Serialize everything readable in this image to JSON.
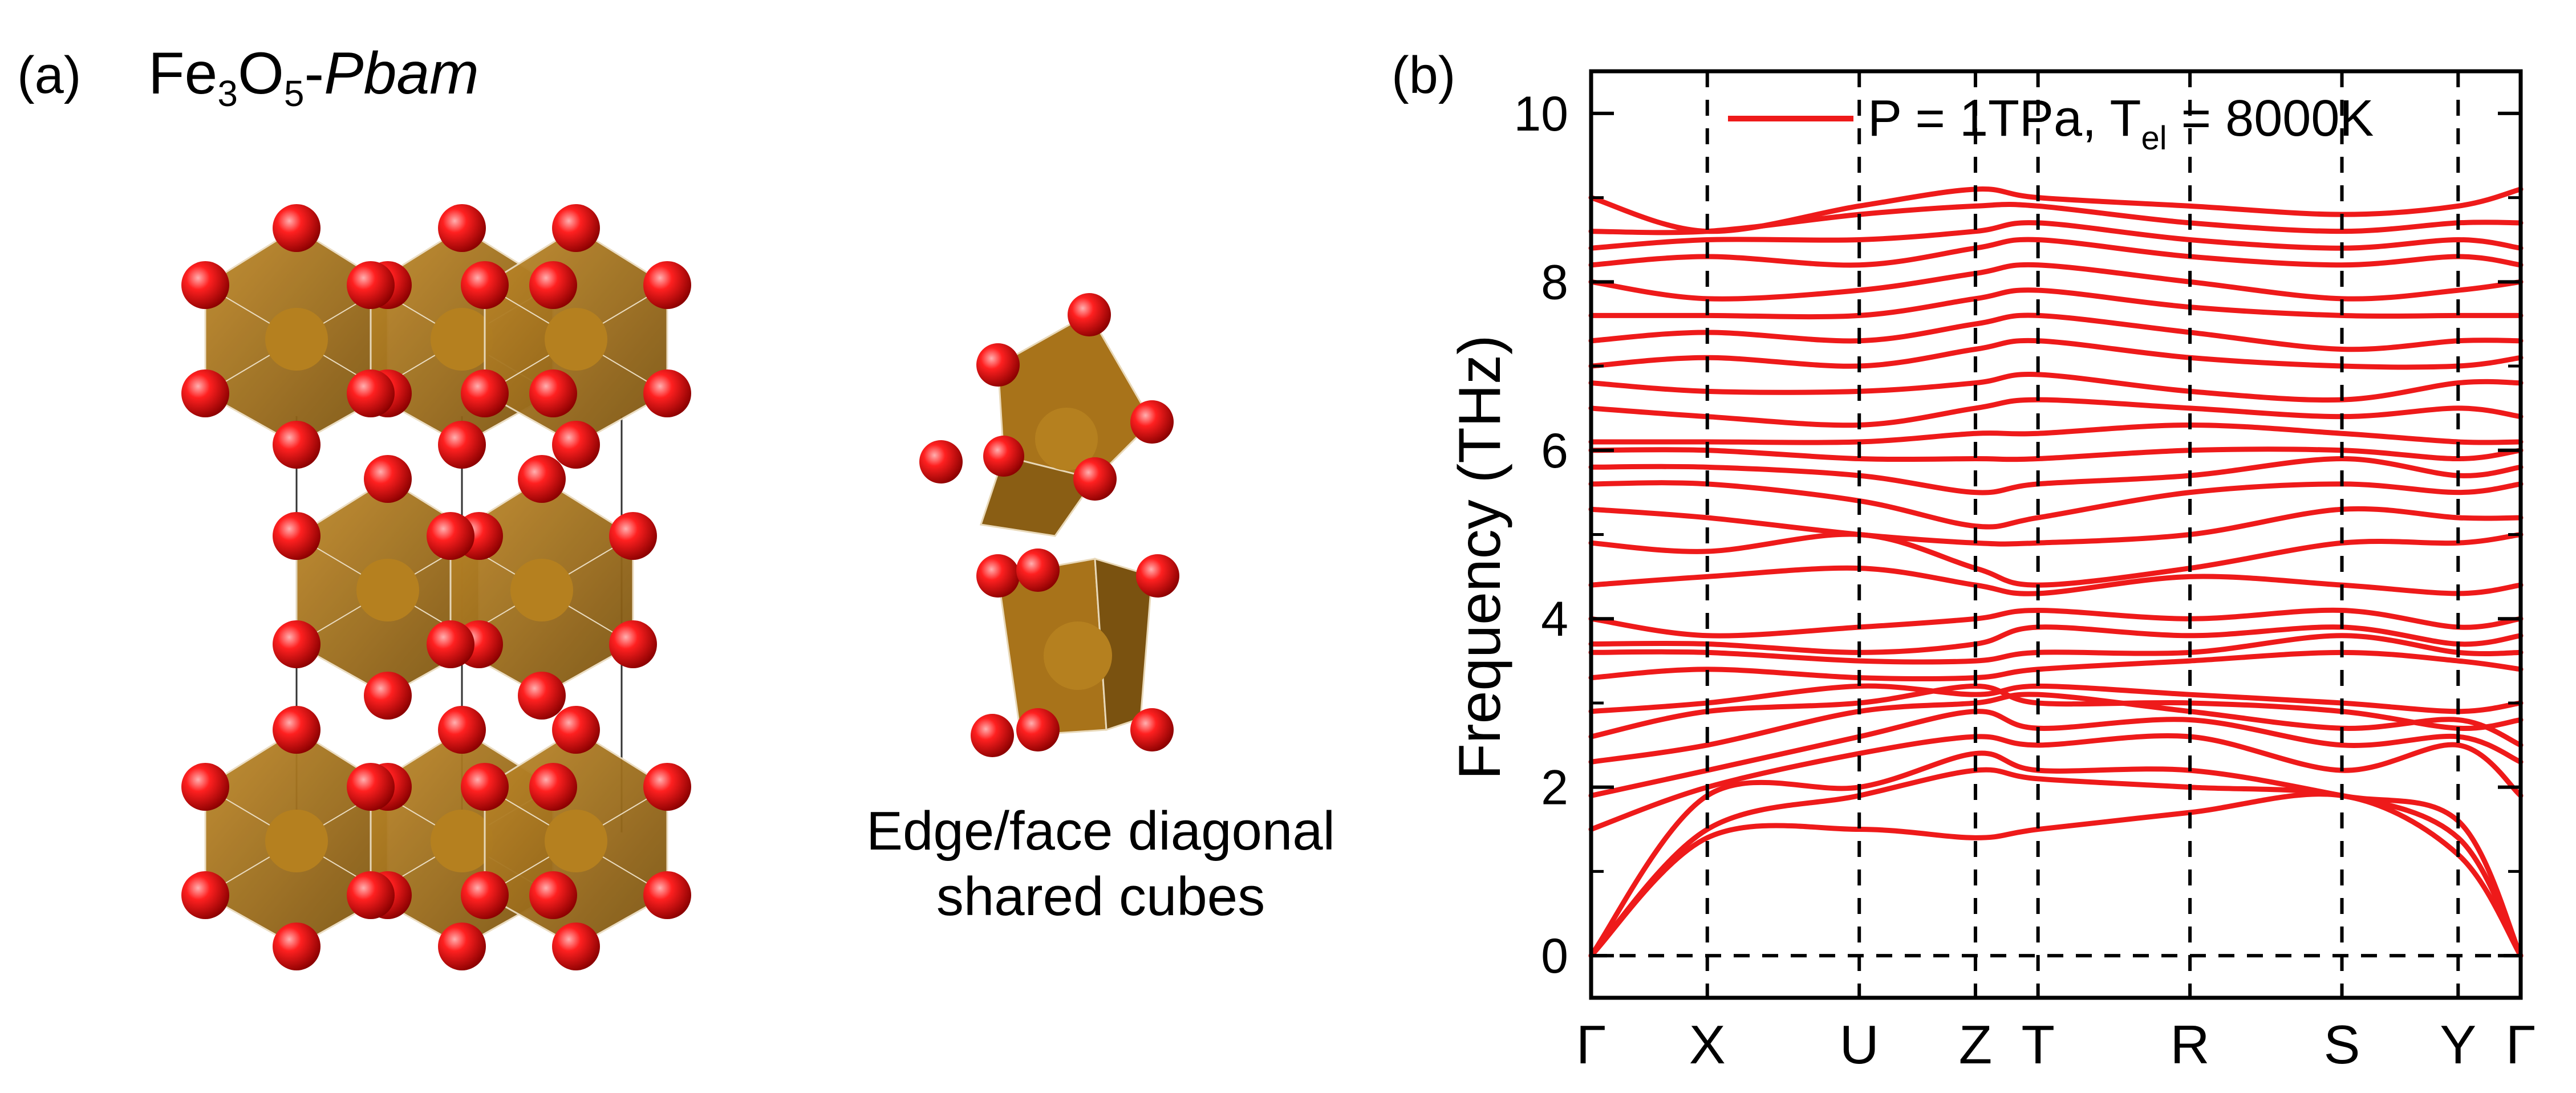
{
  "panel_a": {
    "label": "(a)",
    "title_parts": {
      "fe": "Fe",
      "fe_sub": "3",
      "o": "O",
      "o_sub": "5",
      "dash": "-",
      "space_group": "Pbam"
    },
    "caption_line1": "Edge/face diagonal",
    "caption_line2": "shared cubes",
    "colors": {
      "polyhedra": "#a8731a",
      "oxygen": "#e0101a"
    }
  },
  "panel_b": {
    "label": "(b)"
  },
  "chart_data": {
    "type": "line",
    "ylabel": "Frequency (THz)",
    "ylim": [
      -0.5,
      10.5
    ],
    "yticks": [
      0,
      2,
      4,
      6,
      8,
      10
    ],
    "ytick_labels": [
      "0",
      "2",
      "4",
      "6",
      "8",
      "10"
    ],
    "grid": false,
    "legend": {
      "placement": "top-right",
      "text": "P = 1TPa, T",
      "sub": "el",
      "text_end": " = 8000K"
    },
    "line_color": "#ee1a1a",
    "kpoints": [
      {
        "label": "Γ",
        "x": 0.0
      },
      {
        "label": "X",
        "x": 1.3
      },
      {
        "label": "U",
        "x": 3.0
      },
      {
        "label": "Z",
        "x": 4.3
      },
      {
        "label": "T",
        "x": 5.0
      },
      {
        "label": "R",
        "x": 6.7
      },
      {
        "label": "S",
        "x": 8.4
      },
      {
        "label": "Y",
        "x": 9.7
      },
      {
        "label": "Γ",
        "x": 10.4
      }
    ],
    "series": [
      {
        "values": [
          0.0,
          1.4,
          1.5,
          1.4,
          1.5,
          1.7,
          1.9,
          1.2,
          0.0
        ]
      },
      {
        "values": [
          0.0,
          1.5,
          1.9,
          2.2,
          2.1,
          2.0,
          1.9,
          1.4,
          0.0
        ]
      },
      {
        "values": [
          0.0,
          1.9,
          2.0,
          2.4,
          2.2,
          2.2,
          1.9,
          1.6,
          0.0
        ]
      },
      {
        "values": [
          1.5,
          2.0,
          2.4,
          2.6,
          2.5,
          2.6,
          2.2,
          2.5,
          1.9
        ]
      },
      {
        "values": [
          1.9,
          2.2,
          2.6,
          2.9,
          2.7,
          2.8,
          2.5,
          2.6,
          2.3
        ]
      },
      {
        "values": [
          2.3,
          2.5,
          2.9,
          3.0,
          3.1,
          2.9,
          2.7,
          2.8,
          2.5
        ]
      },
      {
        "values": [
          2.6,
          2.9,
          3.0,
          3.2,
          3.0,
          3.0,
          2.9,
          2.7,
          2.8
        ]
      },
      {
        "values": [
          2.9,
          3.0,
          3.2,
          3.1,
          3.2,
          3.1,
          3.0,
          2.9,
          3.0
        ]
      },
      {
        "values": [
          3.3,
          3.4,
          3.3,
          3.3,
          3.4,
          3.5,
          3.6,
          3.5,
          3.4
        ]
      },
      {
        "values": [
          3.6,
          3.6,
          3.5,
          3.5,
          3.6,
          3.6,
          3.8,
          3.6,
          3.6
        ]
      },
      {
        "values": [
          3.7,
          3.7,
          3.6,
          3.7,
          3.9,
          3.8,
          3.9,
          3.7,
          3.8
        ]
      },
      {
        "values": [
          4.0,
          3.8,
          3.9,
          4.0,
          4.1,
          4.0,
          4.1,
          3.9,
          4.0
        ]
      },
      {
        "values": [
          4.4,
          4.5,
          4.6,
          4.4,
          4.3,
          4.5,
          4.4,
          4.3,
          4.4
        ]
      },
      {
        "values": [
          4.9,
          4.8,
          5.0,
          4.6,
          4.4,
          4.6,
          4.9,
          4.9,
          5.0
        ]
      },
      {
        "values": [
          5.3,
          5.2,
          5.0,
          4.9,
          4.9,
          5.0,
          5.3,
          5.2,
          5.2
        ]
      },
      {
        "values": [
          5.6,
          5.6,
          5.4,
          5.1,
          5.2,
          5.5,
          5.6,
          5.5,
          5.6
        ]
      },
      {
        "values": [
          5.8,
          5.8,
          5.7,
          5.5,
          5.6,
          5.7,
          5.9,
          5.7,
          5.8
        ]
      },
      {
        "values": [
          6.0,
          6.0,
          5.9,
          5.9,
          5.9,
          6.0,
          6.0,
          5.9,
          6.0
        ]
      },
      {
        "values": [
          6.1,
          6.1,
          6.1,
          6.2,
          6.2,
          6.3,
          6.2,
          6.1,
          6.1
        ]
      },
      {
        "values": [
          6.5,
          6.4,
          6.3,
          6.5,
          6.6,
          6.5,
          6.4,
          6.5,
          6.4
        ]
      },
      {
        "values": [
          6.8,
          6.7,
          6.7,
          6.8,
          6.9,
          6.7,
          6.6,
          6.8,
          6.8
        ]
      },
      {
        "values": [
          7.0,
          7.1,
          7.0,
          7.2,
          7.3,
          7.1,
          7.0,
          7.0,
          7.1
        ]
      },
      {
        "values": [
          7.3,
          7.4,
          7.3,
          7.5,
          7.6,
          7.4,
          7.2,
          7.3,
          7.3
        ]
      },
      {
        "values": [
          7.6,
          7.6,
          7.6,
          7.8,
          7.9,
          7.7,
          7.6,
          7.6,
          7.6
        ]
      },
      {
        "values": [
          8.0,
          7.8,
          7.9,
          8.1,
          8.2,
          8.0,
          7.8,
          7.9,
          8.0
        ]
      },
      {
        "values": [
          8.2,
          8.3,
          8.2,
          8.4,
          8.5,
          8.3,
          8.2,
          8.3,
          8.2
        ]
      },
      {
        "values": [
          8.4,
          8.5,
          8.5,
          8.6,
          8.7,
          8.5,
          8.4,
          8.5,
          8.4
        ]
      },
      {
        "values": [
          8.6,
          8.6,
          8.8,
          8.9,
          8.9,
          8.7,
          8.6,
          8.7,
          8.7
        ]
      },
      {
        "values": [
          9.0,
          8.6,
          8.9,
          9.1,
          9.0,
          8.9,
          8.8,
          8.9,
          9.1
        ]
      }
    ]
  }
}
